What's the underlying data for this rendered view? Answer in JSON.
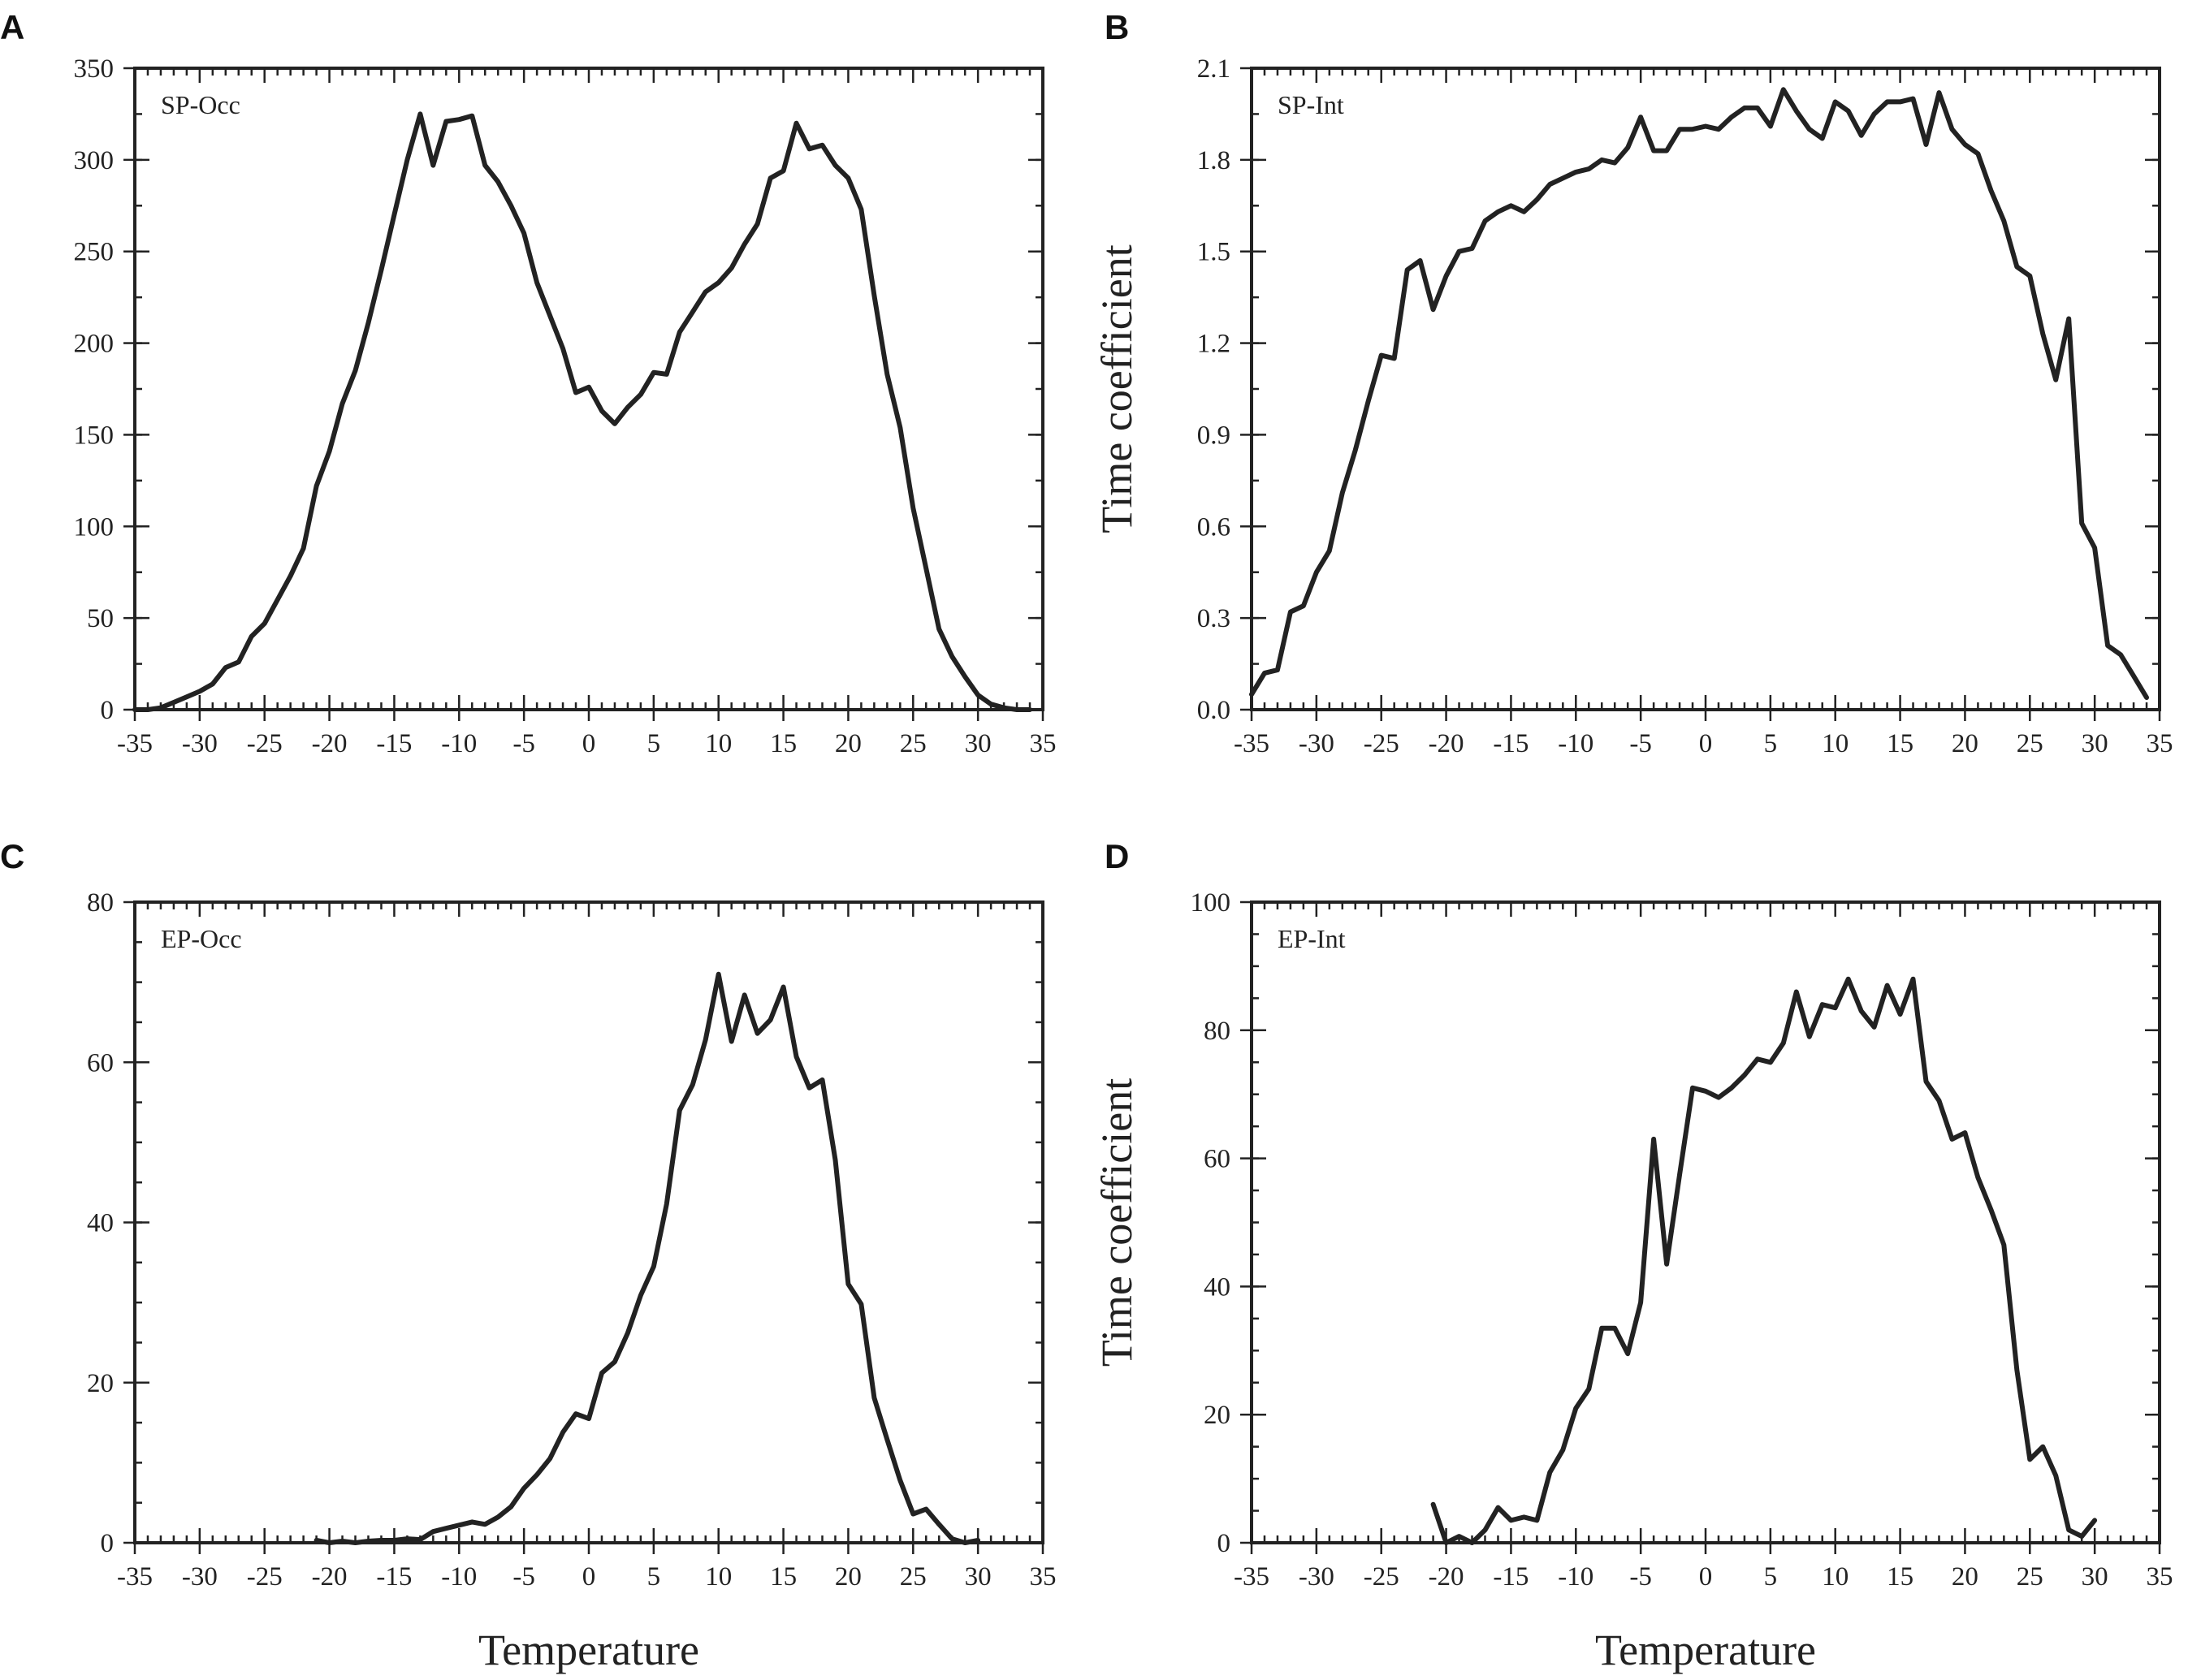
{
  "colors": {
    "line": "#222222",
    "frame": "#222222",
    "background": "#ffffff"
  },
  "chart_data": [
    {
      "panel": "A",
      "type": "line",
      "title": "SP-Occ",
      "xlabel": "",
      "ylabel": "",
      "xlim": [
        -35,
        35
      ],
      "ylim": [
        0,
        350
      ],
      "xticks": [
        -35,
        -30,
        -25,
        -20,
        -15,
        -10,
        -5,
        0,
        5,
        10,
        15,
        20,
        25,
        30,
        35
      ],
      "yticks": [
        "0",
        "50",
        "100",
        "150",
        "200",
        "250",
        "300",
        "350"
      ],
      "ytick_values": [
        0,
        50,
        100,
        150,
        200,
        250,
        300,
        350
      ],
      "yminor": 25,
      "grid": false,
      "x": [
        -35,
        -34,
        -33,
        -32,
        -31,
        -30,
        -29,
        -28,
        -27,
        -26,
        -25,
        -24,
        -23,
        -22,
        -21,
        -20,
        -19,
        -18,
        -17,
        -16,
        -15,
        -14,
        -13,
        -12,
        -11,
        -10,
        -9,
        -8,
        -7,
        -6,
        -5,
        -4,
        -3,
        -2,
        -1,
        0,
        1,
        2,
        3,
        4,
        5,
        6,
        7,
        8,
        9,
        10,
        11,
        12,
        13,
        14,
        15,
        16,
        17,
        18,
        19,
        20,
        21,
        22,
        23,
        24,
        25,
        26,
        27,
        28,
        29,
        30,
        31,
        32,
        33,
        34
      ],
      "y": [
        0,
        0,
        1,
        4,
        7,
        10,
        14,
        23,
        26,
        40,
        47,
        60,
        73,
        88,
        122,
        141,
        167,
        185,
        211,
        240,
        270,
        300,
        325,
        297,
        321,
        322,
        324,
        297,
        288,
        275,
        260,
        233,
        215,
        197,
        173,
        176,
        163,
        156,
        165,
        172,
        184,
        183,
        206,
        217,
        228,
        233,
        241,
        254,
        265,
        290,
        294,
        320,
        306,
        308,
        297,
        290,
        273,
        226,
        183,
        154,
        110,
        77,
        44,
        29,
        18,
        8,
        3,
        1,
        0,
        0
      ]
    },
    {
      "panel": "B",
      "type": "line",
      "title": "SP-Int",
      "xlabel": "",
      "ylabel": "Time coefficient",
      "xlim": [
        -35,
        35
      ],
      "ylim": [
        0,
        2.1
      ],
      "xticks": [
        -35,
        -30,
        -25,
        -20,
        -15,
        -10,
        -5,
        0,
        5,
        10,
        15,
        20,
        25,
        30,
        35
      ],
      "yticks": [
        "0.0",
        "0.3",
        "0.6",
        "0.9",
        "1.2",
        "1.5",
        "1.8",
        "2.1"
      ],
      "ytick_values": [
        0,
        0.3,
        0.6,
        0.9,
        1.2,
        1.5,
        1.8,
        2.1
      ],
      "yminor": 0.15,
      "grid": false,
      "x": [
        -35,
        -34,
        -33,
        -32,
        -31,
        -30,
        -29,
        -28,
        -27,
        -26,
        -25,
        -24,
        -23,
        -22,
        -21,
        -20,
        -19,
        -18,
        -17,
        -16,
        -15,
        -14,
        -13,
        -12,
        -11,
        -10,
        -9,
        -8,
        -7,
        -6,
        -5,
        -4,
        -3,
        -2,
        -1,
        0,
        1,
        2,
        3,
        4,
        5,
        6,
        7,
        8,
        9,
        10,
        11,
        12,
        13,
        14,
        15,
        16,
        17,
        18,
        19,
        20,
        21,
        22,
        23,
        24,
        25,
        26,
        27,
        28,
        29,
        30,
        31,
        32,
        33,
        34
      ],
      "y": [
        0.05,
        0.12,
        0.13,
        0.32,
        0.34,
        0.45,
        0.52,
        0.71,
        0.85,
        1.01,
        1.16,
        1.15,
        1.44,
        1.47,
        1.31,
        1.42,
        1.5,
        1.51,
        1.6,
        1.63,
        1.65,
        1.63,
        1.67,
        1.72,
        1.74,
        1.76,
        1.77,
        1.8,
        1.79,
        1.84,
        1.94,
        1.83,
        1.83,
        1.9,
        1.9,
        1.91,
        1.9,
        1.94,
        1.97,
        1.97,
        1.91,
        2.03,
        1.96,
        1.9,
        1.87,
        1.99,
        1.96,
        1.88,
        1.95,
        1.99,
        1.99,
        2.0,
        1.85,
        2.02,
        1.9,
        1.85,
        1.82,
        1.7,
        1.6,
        1.45,
        1.42,
        1.23,
        1.08,
        1.28,
        0.61,
        0.53,
        0.21,
        0.18,
        0.11,
        0.04
      ]
    },
    {
      "panel": "C",
      "type": "line",
      "title": "EP-Occ",
      "xlabel": "Temperature",
      "ylabel": "",
      "xlim": [
        -35,
        35
      ],
      "ylim": [
        0,
        80
      ],
      "xticks": [
        -35,
        -30,
        -25,
        -20,
        -15,
        -10,
        -5,
        0,
        5,
        10,
        15,
        20,
        25,
        30,
        35
      ],
      "yticks": [
        "0",
        "20",
        "40",
        "60",
        "80"
      ],
      "ytick_values": [
        0,
        20,
        40,
        60,
        80
      ],
      "yminor": 5,
      "grid": false,
      "x": [
        -21,
        -20,
        -19,
        -18,
        -17,
        -16,
        -15,
        -14,
        -13,
        -12,
        -11,
        -10,
        -9,
        -8,
        -7,
        -6,
        -5,
        -4,
        -3,
        -2,
        -1,
        0,
        1,
        2,
        3,
        4,
        5,
        6,
        7,
        8,
        9,
        10,
        11,
        12,
        13,
        14,
        15,
        16,
        17,
        18,
        19,
        20,
        21,
        22,
        23,
        24,
        25,
        26,
        27,
        28,
        29,
        30
      ],
      "y": [
        0.3,
        0,
        0.2,
        0,
        0.2,
        0.3,
        0.3,
        0.5,
        0.4,
        1.4,
        1.8,
        2.2,
        2.6,
        2.3,
        3.2,
        4.5,
        6.8,
        8.5,
        10.5,
        13.8,
        16.1,
        15.5,
        21.2,
        22.6,
        26.2,
        30.9,
        34.5,
        42.3,
        54.0,
        57.2,
        62.8,
        71.0,
        62.6,
        68.4,
        63.6,
        65.3,
        69.4,
        60.7,
        56.8,
        57.8,
        47.8,
        32.3,
        29.8,
        18.1,
        12.9,
        7.8,
        3.6,
        4.2,
        2.3,
        0.5,
        0,
        0.3
      ]
    },
    {
      "panel": "D",
      "type": "line",
      "title": "EP-Int",
      "xlabel": "Temperature",
      "ylabel": "Time coefficient",
      "xlim": [
        -35,
        35
      ],
      "ylim": [
        0,
        100
      ],
      "xticks": [
        -35,
        -30,
        -25,
        -20,
        -15,
        -10,
        -5,
        0,
        5,
        10,
        15,
        20,
        25,
        30,
        35
      ],
      "yticks": [
        "0",
        "20",
        "40",
        "60",
        "80",
        "100"
      ],
      "ytick_values": [
        0,
        20,
        40,
        60,
        80,
        100
      ],
      "yminor": 5,
      "grid": false,
      "x": [
        -21,
        -20,
        -19,
        -18,
        -17,
        -16,
        -15,
        -14,
        -13,
        -12,
        -11,
        -10,
        -9,
        -8,
        -7,
        -6,
        -5,
        -4,
        -3,
        -2,
        -1,
        0,
        1,
        2,
        3,
        4,
        5,
        6,
        7,
        8,
        9,
        10,
        11,
        12,
        13,
        14,
        15,
        16,
        17,
        18,
        19,
        20,
        21,
        22,
        23,
        24,
        25,
        26,
        27,
        28,
        29,
        30
      ],
      "y": [
        6,
        0,
        1,
        0,
        2,
        5.5,
        3.5,
        4,
        3.5,
        11,
        14.5,
        21,
        24,
        33.5,
        33.5,
        29.5,
        37.5,
        63,
        43.5,
        57.5,
        71,
        70.5,
        69.5,
        71,
        73,
        75.5,
        75,
        78,
        86,
        79,
        84,
        83.5,
        88,
        83,
        80.5,
        87,
        82.5,
        88,
        72,
        69,
        63,
        64,
        57,
        52,
        46.5,
        27,
        13,
        15,
        10.5,
        2,
        1,
        3.5
      ]
    }
  ]
}
